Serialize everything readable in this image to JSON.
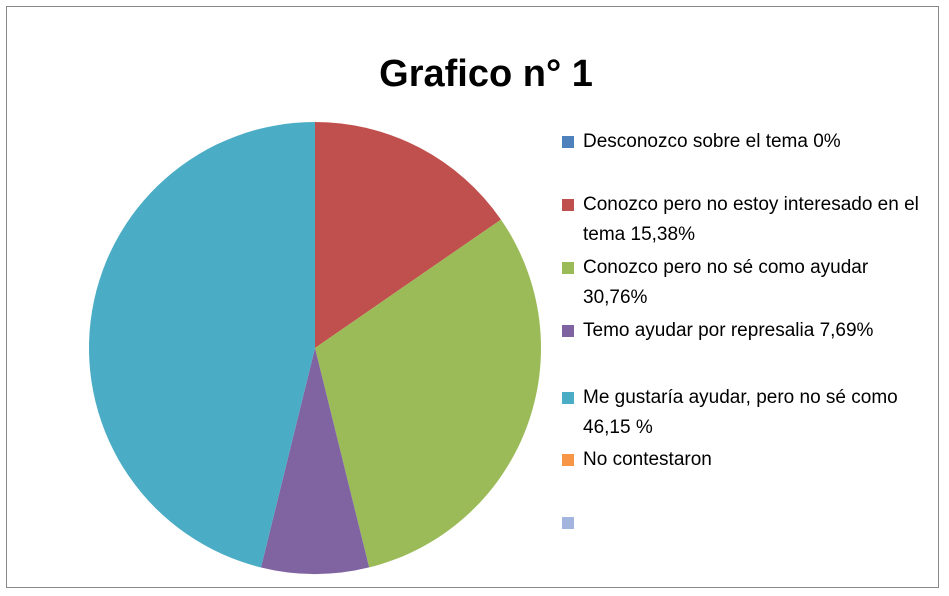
{
  "chart_data": {
    "type": "pie",
    "title": "Grafico n° 1",
    "categories": [
      "Desconozco sobre el tema 0%",
      "Conozco pero no estoy interesado en el tema 15,38%",
      "Conozco pero no sé como ayudar 30,76%",
      "Temo ayudar por represalia 7,69%",
      "Me gustaría ayudar, pero no sé como 46,15 %",
      "No contestaron",
      null
    ],
    "values": [
      0,
      15.38,
      30.76,
      7.69,
      46.15,
      0,
      0
    ],
    "colors": [
      "#4f81bd",
      "#c0504d",
      "#9bbb59",
      "#8064a2",
      "#4bacc6",
      "#f79646",
      "#a3b5de"
    ],
    "legend": "right"
  }
}
